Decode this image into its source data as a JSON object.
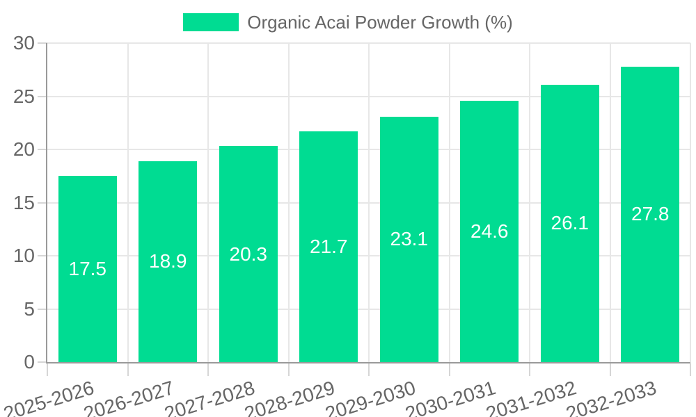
{
  "legend": {
    "position": "top",
    "label": "Organic Acai Powder Growth (%)"
  },
  "colors": {
    "bar": "#00DC92",
    "bar_label": "#FFFFFF",
    "axis_text": "#666666",
    "grid": "#E7E7E7",
    "tick": "#D6D6D6",
    "axis_line": "#9A9A9A",
    "background": "#FFFFFF"
  },
  "chart_data": {
    "type": "bar",
    "title": "Organic Acai Powder Growth (%)",
    "categories": [
      "2025-2026",
      "2026-2027",
      "2027-2028",
      "2028-2029",
      "2029-2030",
      "2030-2031",
      "2031-2032",
      "2032-2033"
    ],
    "values": [
      17.5,
      18.9,
      20.3,
      21.7,
      23.1,
      24.6,
      26.1,
      27.8
    ],
    "value_labels": [
      "17.5",
      "18.9",
      "20.3",
      "21.7",
      "23.1",
      "24.6",
      "26.1",
      "27.8"
    ],
    "xlabel": "",
    "ylabel": "",
    "ylim": [
      0,
      30
    ],
    "yticks": [
      0,
      5,
      10,
      15,
      20,
      25,
      30
    ],
    "grid": true,
    "legend_position": "top",
    "bar_label_position": "center"
  }
}
